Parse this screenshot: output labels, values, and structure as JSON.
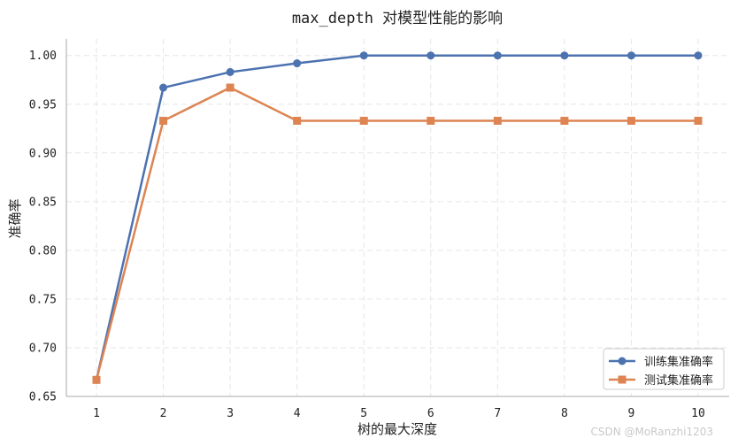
{
  "chart_data": {
    "type": "line",
    "title": "max_depth 对模型性能的影响",
    "xlabel": "树的最大深度",
    "ylabel": "准确率",
    "x": [
      1,
      2,
      3,
      4,
      5,
      6,
      7,
      8,
      9,
      10
    ],
    "xtick_labels": [
      "1",
      "2",
      "3",
      "4",
      "5",
      "6",
      "7",
      "8",
      "9",
      "10"
    ],
    "ylim": [
      0.65,
      1.017
    ],
    "yticks": [
      0.65,
      0.7,
      0.75,
      0.8,
      0.85,
      0.9,
      0.95,
      1.0
    ],
    "ytick_labels": [
      "0.65",
      "0.70",
      "0.75",
      "0.80",
      "0.85",
      "0.90",
      "0.95",
      "1.00"
    ],
    "grid": true,
    "legend_position": "bottom-right",
    "series": [
      {
        "name": "训练集准确率",
        "color": "#4c72b0",
        "marker": "circle",
        "values": [
          0.667,
          0.967,
          0.983,
          0.992,
          1.0,
          1.0,
          1.0,
          1.0,
          1.0,
          1.0
        ]
      },
      {
        "name": "测试集准确率",
        "color": "#dd8452",
        "marker": "square",
        "values": [
          0.667,
          0.933,
          0.967,
          0.933,
          0.933,
          0.933,
          0.933,
          0.933,
          0.933,
          0.933
        ]
      }
    ]
  },
  "watermark": "CSDN @MoRanzhi1203"
}
